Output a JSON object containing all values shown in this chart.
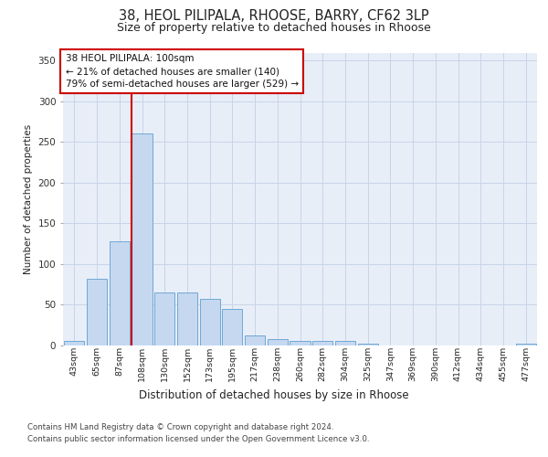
{
  "title_line1": "38, HEOL PILIPALA, RHOOSE, BARRY, CF62 3LP",
  "title_line2": "Size of property relative to detached houses in Rhoose",
  "xlabel": "Distribution of detached houses by size in Rhoose",
  "ylabel": "Number of detached properties",
  "categories": [
    "43sqm",
    "65sqm",
    "87sqm",
    "108sqm",
    "130sqm",
    "152sqm",
    "173sqm",
    "195sqm",
    "217sqm",
    "238sqm",
    "260sqm",
    "282sqm",
    "304sqm",
    "325sqm",
    "347sqm",
    "369sqm",
    "390sqm",
    "412sqm",
    "434sqm",
    "455sqm",
    "477sqm"
  ],
  "values": [
    5,
    82,
    128,
    260,
    65,
    65,
    57,
    45,
    12,
    7,
    5,
    5,
    5,
    2,
    0,
    0,
    0,
    0,
    0,
    0,
    2
  ],
  "bar_color": "#c5d8f0",
  "bar_edge_color": "#6fa8d5",
  "vline_index": 3,
  "vline_color": "#cc0000",
  "annotation_line1": "38 HEOL PILIPALA: 100sqm",
  "annotation_line2": "← 21% of detached houses are smaller (140)",
  "annotation_line3": "79% of semi-detached houses are larger (529) →",
  "ylim_max": 360,
  "yticks": [
    0,
    50,
    100,
    150,
    200,
    250,
    300,
    350
  ],
  "footer_line1": "Contains HM Land Registry data © Crown copyright and database right 2024.",
  "footer_line2": "Contains public sector information licensed under the Open Government Licence v3.0.",
  "plot_bg_color": "#e8eef8"
}
